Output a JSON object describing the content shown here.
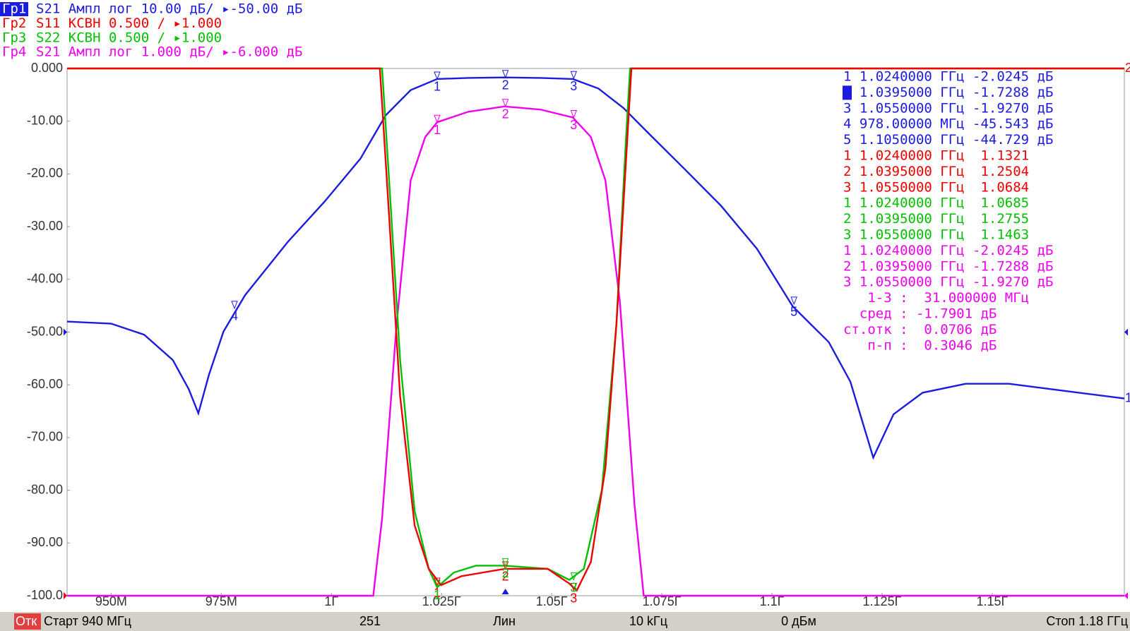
{
  "chart_data": {
    "type": "line",
    "active_trace": 0,
    "xlim": [
      940,
      1180
    ],
    "ylim": [
      -100,
      0
    ],
    "yticks": [
      {
        "value": 0,
        "label": "0.000"
      },
      {
        "value": -10,
        "label": "-10.00"
      },
      {
        "value": -20,
        "label": "-20.00"
      },
      {
        "value": -30,
        "label": "-30.00"
      },
      {
        "value": -40,
        "label": "-40.00"
      },
      {
        "value": -50,
        "label": "-50.00"
      },
      {
        "value": -60,
        "label": "-60.00"
      },
      {
        "value": -70,
        "label": "-70.00"
      },
      {
        "value": -80,
        "label": "-80.00"
      },
      {
        "value": -90,
        "label": "-90.00"
      },
      {
        "value": -100,
        "label": "-100.0"
      }
    ],
    "xticks": [
      {
        "value": 950,
        "label": "950M"
      },
      {
        "value": 975,
        "label": "975M"
      },
      {
        "value": 1000,
        "label": "1Г"
      },
      {
        "value": 1025,
        "label": "1.025Г"
      },
      {
        "value": 1050,
        "label": "1.05Г"
      },
      {
        "value": 1075,
        "label": "1.075Г"
      },
      {
        "value": 1100,
        "label": "1.1Г"
      },
      {
        "value": 1125,
        "label": "1.125Г"
      },
      {
        "value": 1150,
        "label": "1.15Г"
      }
    ],
    "series": [
      {
        "trace": "Гр1",
        "name": "S21 Ампл лог 10.00 дБ/ ▸-50.00 дБ",
        "color": "#1c1ce0",
        "end_label": "1",
        "x": [
          940,
          950,
          957.5,
          964,
          967.6,
          969.8,
          972.2,
          975.5,
          980.4,
          990.2,
          998.4,
          1006.6,
          1012.3,
          1018,
          1024,
          1031,
          1039.3,
          1047.5,
          1054.8,
          1060.6,
          1066.3,
          1072,
          1080.2,
          1088.4,
          1096.6,
          1104.7,
          1112.9,
          1117.8,
          1123,
          1127.6,
          1134.2,
          1144,
          1153.8,
          1166.9,
          1180
        ],
        "values": [
          -48.0,
          -48.4,
          -50.5,
          -55.3,
          -60.8,
          -65.4,
          -58.1,
          -49.9,
          -43.0,
          -32.8,
          -25.3,
          -17.1,
          -8.9,
          -4.1,
          -2.0,
          -1.8,
          -1.7,
          -1.8,
          -2.0,
          -3.8,
          -7.5,
          -12.3,
          -19.1,
          -26.0,
          -34.2,
          -45.1,
          -51.9,
          -59.4,
          -73.8,
          -65.6,
          -61.5,
          -59.8,
          -59.8,
          -61.2,
          -62.6
        ],
        "markers": [
          {
            "label": "1",
            "x": 1024,
            "y": -2.0
          },
          {
            "label": "2",
            "x": 1039.5,
            "y": -1.7
          },
          {
            "label": "3",
            "x": 1055,
            "y": -1.9
          },
          {
            "label": "4",
            "x": 978,
            "y": -45.5
          },
          {
            "label": "5",
            "x": 1105,
            "y": -44.7
          }
        ]
      },
      {
        "trace": "Гр2",
        "name": "S11 КСВН 0.500 / ▸1.000",
        "color": "#f00000",
        "end_label": "2",
        "x": [
          940,
          1011,
          1013.1,
          1015.6,
          1018.9,
          1022.1,
          1024.9,
          1029.5,
          1039.3,
          1049.1,
          1054,
          1055.7,
          1058.9,
          1062.2,
          1064.7,
          1067.1,
          1068.1,
          1180
        ],
        "values": [
          0,
          0,
          -28,
          -62.2,
          -86.7,
          -94.9,
          -98,
          -96.3,
          -94.9,
          -94.9,
          -97.7,
          -99,
          -93.6,
          -75.8,
          -48.5,
          -14.3,
          0,
          0
        ],
        "markers": [
          {
            "label": "1",
            "x": 1024,
            "y": -98
          },
          {
            "label": "2",
            "x": 1039.5,
            "y": -94.9
          },
          {
            "label": "3",
            "x": 1055,
            "y": -99
          }
        ]
      },
      {
        "trace": "Гр3",
        "name": "S22 КСВН 0.500 / ▸1.000",
        "color": "#00c000",
        "x": [
          940,
          1011.5,
          1013.1,
          1015.6,
          1018.9,
          1022.1,
          1024,
          1027.8,
          1032.8,
          1039.3,
          1049.1,
          1054,
          1057.3,
          1061.4,
          1064.7,
          1066.8,
          1067.8,
          1180
        ],
        "values": [
          0,
          0,
          -21.2,
          -55.3,
          -84,
          -94.9,
          -98.4,
          -95.6,
          -94.3,
          -94.3,
          -94.9,
          -97,
          -94.9,
          -79.9,
          -48.5,
          -14.3,
          0,
          0
        ],
        "markers": [
          {
            "label": "1",
            "x": 1024,
            "y": -98.4
          },
          {
            "label": "2",
            "x": 1039.5,
            "y": -94.3
          },
          {
            "label": "3",
            "x": 1055,
            "y": -97
          }
        ]
      },
      {
        "trace": "Гр4",
        "name": "S21 Ампл лог 1.000 дБ/ ▸-6.000 дБ",
        "color": "#f000f0",
        "x": [
          940,
          1009.5,
          1011.5,
          1014.8,
          1018,
          1021.3,
          1024,
          1031.1,
          1039.3,
          1047.5,
          1054.8,
          1058.9,
          1062.2,
          1065.5,
          1068.8,
          1070.9,
          1180
        ],
        "values": [
          -100,
          -100,
          -85.4,
          -48.5,
          -21.2,
          -13,
          -10.2,
          -8.2,
          -7.2,
          -7.8,
          -9.3,
          -13,
          -21.2,
          -44.4,
          -82.7,
          -100,
          -100
        ],
        "markers": [
          {
            "label": "1",
            "x": 1024,
            "y": -10.2
          },
          {
            "label": "2",
            "x": 1039.5,
            "y": -7.2
          },
          {
            "label": "3",
            "x": 1055,
            "y": -9.3
          }
        ]
      }
    ]
  },
  "marker_table": {
    "groups": [
      {
        "color": "#1c1ce0",
        "active": 1,
        "rows": [
          "1 1.0240000 ГГц -2.0245 дБ",
          "2 1.0395000 ГГц -1.7288 дБ",
          "3 1.0550000 ГГц -1.9270 дБ",
          "4 978.00000 МГц -45.543 дБ",
          "5 1.1050000 ГГц -44.729 дБ"
        ]
      },
      {
        "color": "#f00000",
        "rows": [
          "1 1.0240000 ГГц  1.1321",
          "2 1.0395000 ГГц  1.2504",
          "3 1.0550000 ГГц  1.0684"
        ]
      },
      {
        "color": "#00c000",
        "rows": [
          "1 1.0240000 ГГц  1.0685",
          "2 1.0395000 ГГц  1.2755",
          "3 1.0550000 ГГц  1.1463"
        ]
      },
      {
        "color": "#f000f0",
        "rows": [
          "1 1.0240000 ГГц -2.0245 дБ",
          "2 1.0395000 ГГц -1.7288 дБ",
          "3 1.0550000 ГГц -1.9270 дБ",
          "   1-3 :  31.000000 МГц",
          "  сред : -1.7901 дБ",
          "ст.отк :  0.0706 дБ",
          "   п-п :  0.3046 дБ"
        ]
      }
    ]
  },
  "status_bar": {
    "items": [
      "Отк",
      "Старт 940 МГц",
      "251",
      "Лин",
      "10 kГц",
      "0 дБм",
      "Стоп 1.18 ГГц"
    ]
  }
}
